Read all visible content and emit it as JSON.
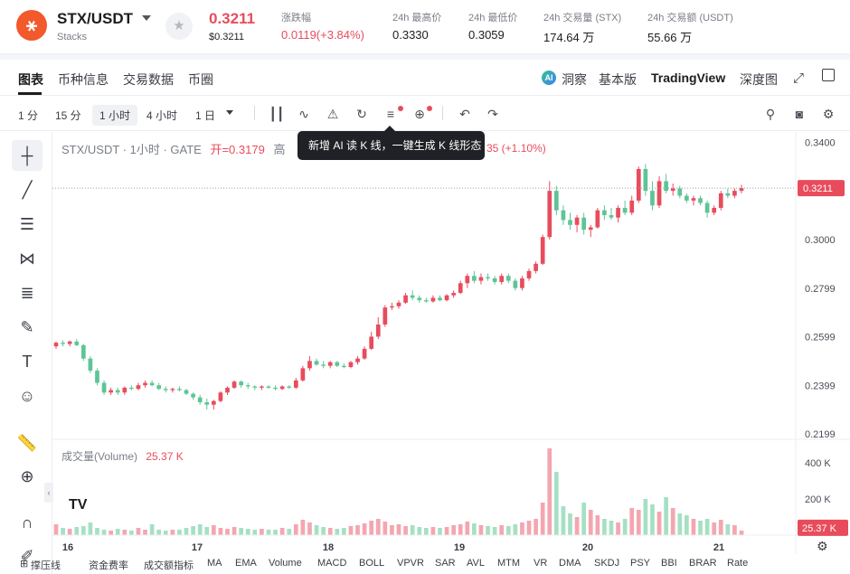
{
  "header": {
    "logo_glyph": "⚹",
    "pair": "STX/USDT",
    "name": "Stacks",
    "price": "0.3211",
    "price_usd": "$0.3211",
    "change_label": "涨跌幅",
    "change_value": "0.0119(+3.84%)",
    "stats": [
      {
        "label": "24h 最高价",
        "value": "0.3330"
      },
      {
        "label": "24h 最低价",
        "value": "0.3059"
      },
      {
        "label": "24h 交易量 (STX)",
        "value": "174.64 万"
      },
      {
        "label": "24h 交易额 (USDT)",
        "value": "55.66 万"
      }
    ]
  },
  "nav": {
    "tabs": [
      "图表",
      "币种信息",
      "交易数据",
      "币圈"
    ],
    "right": [
      "洞察",
      "基本版",
      "TradingView",
      "深度图"
    ]
  },
  "toolbar": {
    "timeframes": [
      "1 分",
      "15 分",
      "1 小时",
      "4 小时",
      "1 日"
    ],
    "active_timeframe": "1 小时"
  },
  "chart_legend": {
    "symbol": "STX/USDT · 1小时 · GATE",
    "open_label": "开=0.3179",
    "high_fragment": "高",
    "change_fragment": "35 (+1.10%)"
  },
  "tooltip": "新增 AI 读 K 线，一键生成 K 线形态",
  "volume_legend": {
    "label": "成交量(Volume)",
    "value": "25.37 K"
  },
  "indicators": [
    "撑压线",
    "资金费率",
    "成交额指标",
    "MA",
    "EMA",
    "Volume",
    "MACD",
    "BOLL",
    "VPVR",
    "SAR",
    "AVL",
    "MTM",
    "VR",
    "DMA",
    "SKDJ",
    "PSY",
    "BBI",
    "BRAR",
    "Rate"
  ],
  "colors": {
    "up": "#e84c5c",
    "down": "#5ec496",
    "up_volume": "#f4a6b0",
    "down_volume": "#a6e0c4"
  },
  "chart_data": {
    "type": "candlestick",
    "x_ticks": [
      "16",
      "17",
      "18",
      "19",
      "20",
      "21"
    ],
    "y_ticks": [
      "0.3400",
      "0.3000",
      "0.2799",
      "0.2599",
      "0.2399",
      "0.2199"
    ],
    "volume_ticks": [
      "400 K",
      "200 K"
    ],
    "current_price": "0.3211",
    "current_volume": "25.37 K",
    "ylim": [
      0.2185,
      0.342
    ],
    "volume_max": 500,
    "candles": [
      [
        0.256,
        0.258,
        0.255,
        0.2575,
        60
      ],
      [
        0.2575,
        0.2585,
        0.256,
        0.257,
        40
      ],
      [
        0.257,
        0.2585,
        0.256,
        0.258,
        35
      ],
      [
        0.258,
        0.259,
        0.256,
        0.2565,
        45
      ],
      [
        0.2565,
        0.257,
        0.25,
        0.251,
        50
      ],
      [
        0.251,
        0.252,
        0.245,
        0.246,
        70
      ],
      [
        0.246,
        0.247,
        0.24,
        0.241,
        40
      ],
      [
        0.241,
        0.242,
        0.236,
        0.237,
        30
      ],
      [
        0.237,
        0.239,
        0.236,
        0.238,
        25
      ],
      [
        0.238,
        0.239,
        0.236,
        0.237,
        35
      ],
      [
        0.237,
        0.2395,
        0.236,
        0.239,
        30
      ],
      [
        0.239,
        0.24,
        0.238,
        0.2385,
        25
      ],
      [
        0.2385,
        0.241,
        0.238,
        0.24,
        40
      ],
      [
        0.24,
        0.242,
        0.239,
        0.241,
        30
      ],
      [
        0.241,
        0.242,
        0.2395,
        0.24,
        60
      ],
      [
        0.24,
        0.241,
        0.238,
        0.2385,
        30
      ],
      [
        0.2385,
        0.2395,
        0.237,
        0.238,
        25
      ],
      [
        0.238,
        0.239,
        0.237,
        0.2385,
        30
      ],
      [
        0.2385,
        0.2395,
        0.2375,
        0.238,
        30
      ],
      [
        0.238,
        0.2385,
        0.236,
        0.2365,
        40
      ],
      [
        0.2365,
        0.237,
        0.234,
        0.235,
        50
      ],
      [
        0.235,
        0.236,
        0.232,
        0.233,
        60
      ],
      [
        0.233,
        0.2345,
        0.23,
        0.232,
        45
      ],
      [
        0.232,
        0.234,
        0.23,
        0.2335,
        55
      ],
      [
        0.2335,
        0.2375,
        0.233,
        0.237,
        40
      ],
      [
        0.237,
        0.2395,
        0.236,
        0.239,
        35
      ],
      [
        0.239,
        0.242,
        0.2385,
        0.2415,
        45
      ],
      [
        0.2415,
        0.242,
        0.239,
        0.24,
        40
      ],
      [
        0.24,
        0.241,
        0.2385,
        0.2395,
        35
      ],
      [
        0.2395,
        0.24,
        0.238,
        0.239,
        30
      ],
      [
        0.239,
        0.24,
        0.238,
        0.2395,
        35
      ],
      [
        0.2395,
        0.24,
        0.2385,
        0.239,
        30
      ],
      [
        0.239,
        0.24,
        0.238,
        0.2385,
        30
      ],
      [
        0.2385,
        0.24,
        0.238,
        0.2395,
        40
      ],
      [
        0.2395,
        0.24,
        0.2385,
        0.239,
        35
      ],
      [
        0.239,
        0.243,
        0.2385,
        0.242,
        60
      ],
      [
        0.242,
        0.248,
        0.2415,
        0.247,
        85
      ],
      [
        0.247,
        0.252,
        0.246,
        0.25,
        70
      ],
      [
        0.25,
        0.251,
        0.248,
        0.2485,
        55
      ],
      [
        0.2485,
        0.25,
        0.247,
        0.248,
        45
      ],
      [
        0.248,
        0.25,
        0.247,
        0.2495,
        40
      ],
      [
        0.2495,
        0.25,
        0.2475,
        0.248,
        35
      ],
      [
        0.248,
        0.249,
        0.247,
        0.2475,
        40
      ],
      [
        0.2475,
        0.25,
        0.247,
        0.2495,
        50
      ],
      [
        0.2495,
        0.252,
        0.2485,
        0.251,
        55
      ],
      [
        0.251,
        0.256,
        0.2505,
        0.255,
        65
      ],
      [
        0.255,
        0.262,
        0.2545,
        0.26,
        80
      ],
      [
        0.26,
        0.268,
        0.259,
        0.265,
        90
      ],
      [
        0.265,
        0.273,
        0.264,
        0.272,
        75
      ],
      [
        0.272,
        0.274,
        0.271,
        0.2725,
        55
      ],
      [
        0.2725,
        0.275,
        0.2715,
        0.274,
        60
      ],
      [
        0.274,
        0.278,
        0.2735,
        0.277,
        50
      ],
      [
        0.277,
        0.279,
        0.275,
        0.276,
        55
      ],
      [
        0.276,
        0.277,
        0.274,
        0.275,
        45
      ],
      [
        0.275,
        0.276,
        0.274,
        0.2745,
        40
      ],
      [
        0.2745,
        0.277,
        0.274,
        0.276,
        45
      ],
      [
        0.276,
        0.277,
        0.2745,
        0.275,
        40
      ],
      [
        0.275,
        0.2775,
        0.2745,
        0.277,
        45
      ],
      [
        0.277,
        0.279,
        0.276,
        0.278,
        55
      ],
      [
        0.278,
        0.283,
        0.2775,
        0.282,
        60
      ],
      [
        0.282,
        0.286,
        0.28,
        0.285,
        75
      ],
      [
        0.285,
        0.287,
        0.282,
        0.283,
        65
      ],
      [
        0.283,
        0.286,
        0.2815,
        0.2845,
        55
      ],
      [
        0.2845,
        0.286,
        0.283,
        0.284,
        50
      ],
      [
        0.284,
        0.285,
        0.2815,
        0.2825,
        45
      ],
      [
        0.2825,
        0.286,
        0.2815,
        0.285,
        55
      ],
      [
        0.285,
        0.286,
        0.282,
        0.283,
        50
      ],
      [
        0.283,
        0.284,
        0.279,
        0.28,
        60
      ],
      [
        0.28,
        0.285,
        0.279,
        0.284,
        70
      ],
      [
        0.284,
        0.288,
        0.283,
        0.287,
        80
      ],
      [
        0.287,
        0.291,
        0.286,
        0.29,
        90
      ],
      [
        0.29,
        0.302,
        0.2895,
        0.301,
        180
      ],
      [
        0.301,
        0.324,
        0.3,
        0.32,
        480
      ],
      [
        0.32,
        0.322,
        0.31,
        0.312,
        350
      ],
      [
        0.312,
        0.314,
        0.306,
        0.308,
        160
      ],
      [
        0.308,
        0.311,
        0.304,
        0.306,
        120
      ],
      [
        0.306,
        0.31,
        0.303,
        0.309,
        100
      ],
      [
        0.309,
        0.311,
        0.302,
        0.304,
        180
      ],
      [
        0.304,
        0.306,
        0.301,
        0.305,
        140
      ],
      [
        0.305,
        0.313,
        0.3045,
        0.312,
        110
      ],
      [
        0.312,
        0.314,
        0.308,
        0.31,
        90
      ],
      [
        0.31,
        0.313,
        0.308,
        0.309,
        80
      ],
      [
        0.309,
        0.314,
        0.307,
        0.313,
        70
      ],
      [
        0.313,
        0.316,
        0.31,
        0.311,
        90
      ],
      [
        0.311,
        0.318,
        0.31,
        0.316,
        150
      ],
      [
        0.316,
        0.33,
        0.315,
        0.329,
        140
      ],
      [
        0.329,
        0.331,
        0.318,
        0.32,
        200
      ],
      [
        0.32,
        0.324,
        0.312,
        0.314,
        170
      ],
      [
        0.314,
        0.326,
        0.313,
        0.324,
        130
      ],
      [
        0.324,
        0.327,
        0.319,
        0.32,
        210
      ],
      [
        0.32,
        0.323,
        0.318,
        0.321,
        150
      ],
      [
        0.321,
        0.322,
        0.317,
        0.318,
        120
      ],
      [
        0.318,
        0.319,
        0.315,
        0.316,
        110
      ],
      [
        0.316,
        0.318,
        0.314,
        0.317,
        90
      ],
      [
        0.317,
        0.318,
        0.314,
        0.315,
        80
      ],
      [
        0.315,
        0.316,
        0.309,
        0.311,
        90
      ],
      [
        0.311,
        0.314,
        0.31,
        0.313,
        70
      ],
      [
        0.313,
        0.32,
        0.312,
        0.319,
        85
      ],
      [
        0.319,
        0.321,
        0.317,
        0.318,
        60
      ],
      [
        0.318,
        0.321,
        0.317,
        0.32,
        55
      ],
      [
        0.32,
        0.3225,
        0.319,
        0.3211,
        25
      ]
    ]
  }
}
